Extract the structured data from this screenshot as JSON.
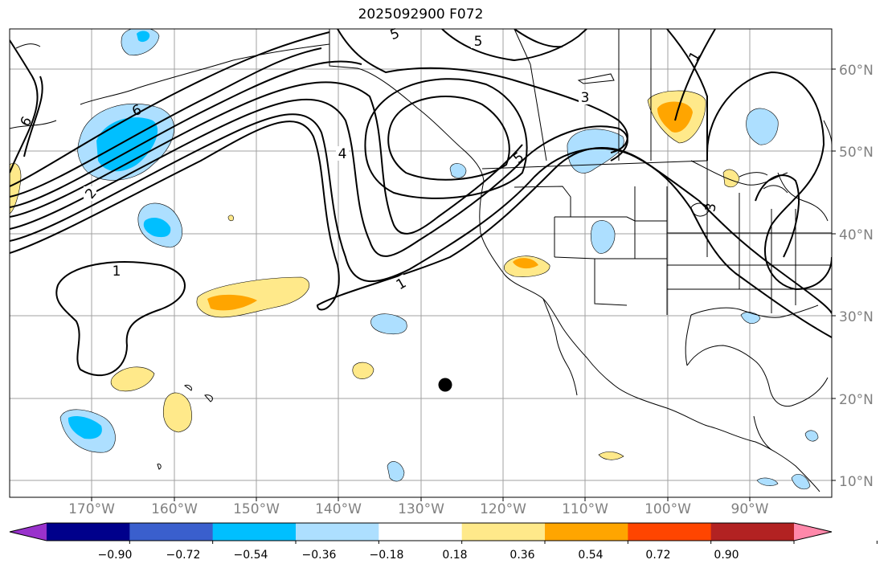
{
  "title": "2025092900 F072",
  "longitude_labels": [
    "170°W",
    "160°W",
    "150°W",
    "140°W",
    "130°W",
    "120°W",
    "110°W",
    "100°W",
    "90°W"
  ],
  "latitude_labels": [
    "60°N",
    "50°N",
    "40°N",
    "30°N",
    "20°N",
    "10°N"
  ],
  "contour_labels": [
    "1",
    "1",
    "1",
    "2",
    "3",
    "3",
    "4",
    "5",
    "5",
    "5",
    "6",
    "6"
  ],
  "colorbar": {
    "ticks": [
      "−0.90",
      "−0.72",
      "−0.54",
      "−0.36",
      "−0.18",
      "0.18",
      "0.36",
      "0.54",
      "0.72",
      "0.90"
    ],
    "colors": [
      "#9932CC",
      "#00008B",
      "#3A5FCD",
      "#00BFFF",
      "#ADDFFF",
      "#FFFFFF",
      "#FFE98A",
      "#FFA500",
      "#FF4500",
      "#B22222",
      "#FF88AA"
    ]
  },
  "colors": {
    "light_blue": "#ADDFFF",
    "deep_sky_blue": "#00BFFF",
    "light_yellow": "#FFE98A",
    "orange": "#FFA500",
    "grid": "#a0a0a0",
    "marker": "#000000"
  }
}
